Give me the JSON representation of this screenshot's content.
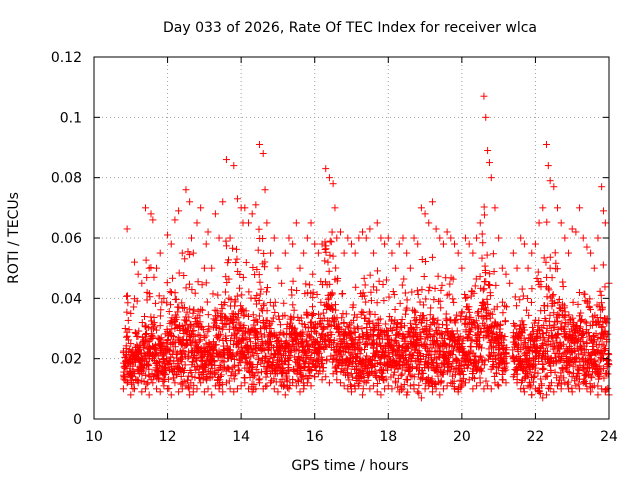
{
  "chart_data": {
    "type": "scatter",
    "title": "Day 033 of 2026, Rate Of TEC Index for receiver wlca",
    "xlabel": "GPS time / hours",
    "ylabel": "ROTI / TECUs",
    "xlim": [
      10,
      24
    ],
    "ylim": [
      0,
      0.12
    ],
    "x_ticks": [
      "10",
      "12",
      "14",
      "16",
      "18",
      "20",
      "22",
      "24"
    ],
    "y_ticks": [
      "0",
      "0.02",
      "0.04",
      "0.06",
      "0.08",
      "0.1",
      "0.12"
    ],
    "grid": true,
    "marker": "plus",
    "color": "#ff0000",
    "series": [
      {
        "x": [
          10.85,
          10.9,
          11.0,
          11.1,
          11.2,
          11.3,
          11.4,
          11.5,
          11.55,
          11.6,
          11.7,
          11.8,
          11.9,
          12.0,
          12.1,
          12.2,
          12.3,
          12.4,
          12.5,
          12.6,
          12.65,
          12.7,
          12.8,
          12.9,
          13.0,
          13.05,
          13.1,
          13.2,
          13.3,
          13.4,
          13.5,
          13.6,
          13.7,
          13.8,
          13.9,
          14.0,
          14.05,
          14.1,
          14.2,
          14.3,
          14.4,
          14.5,
          14.6,
          14.65,
          14.7,
          14.8,
          14.9,
          15.0,
          15.1,
          15.2,
          15.3,
          15.4,
          15.5,
          15.6,
          15.7,
          15.8,
          15.9,
          16.0,
          16.1,
          16.2,
          16.3,
          16.4,
          16.5,
          16.55,
          16.6,
          16.7,
          16.8,
          16.9,
          17.0,
          17.1,
          17.2,
          17.3,
          17.4,
          17.5,
          17.6,
          17.7,
          17.8,
          17.9,
          18.0,
          18.1,
          18.2,
          18.3,
          18.4,
          18.5,
          18.6,
          18.7,
          18.8,
          18.9,
          19.0,
          19.1,
          19.2,
          19.3,
          19.4,
          19.5,
          19.6,
          19.7,
          19.8,
          19.9,
          20.0,
          20.1,
          20.2,
          20.3,
          20.4,
          20.5,
          20.6,
          20.65,
          20.7,
          20.75,
          20.8,
          20.9,
          21.0,
          21.1,
          21.2,
          21.3,
          21.4,
          21.5,
          21.6,
          21.7,
          21.8,
          21.9,
          22.0,
          22.1,
          22.2,
          22.3,
          22.35,
          22.4,
          22.5,
          22.6,
          22.7,
          22.8,
          22.9,
          23.0,
          23.1,
          23.2,
          23.3,
          23.4,
          23.5,
          23.6,
          23.7,
          23.8,
          23.85,
          23.9,
          24.0
        ],
        "y": [
          0.03,
          0.063,
          0.035,
          0.052,
          0.048,
          0.045,
          0.07,
          0.05,
          0.068,
          0.066,
          0.05,
          0.055,
          0.04,
          0.061,
          0.058,
          0.066,
          0.069,
          0.055,
          0.076,
          0.072,
          0.06,
          0.055,
          0.065,
          0.07,
          0.05,
          0.058,
          0.062,
          0.05,
          0.068,
          0.06,
          0.072,
          0.086,
          0.06,
          0.084,
          0.073,
          0.07,
          0.065,
          0.07,
          0.065,
          0.068,
          0.071,
          0.091,
          0.088,
          0.076,
          0.065,
          0.055,
          0.06,
          0.05,
          0.045,
          0.055,
          0.06,
          0.058,
          0.065,
          0.05,
          0.055,
          0.06,
          0.065,
          0.058,
          0.055,
          0.058,
          0.083,
          0.08,
          0.078,
          0.07,
          0.06,
          0.062,
          0.055,
          0.06,
          0.058,
          0.055,
          0.06,
          0.062,
          0.06,
          0.063,
          0.055,
          0.065,
          0.06,
          0.058,
          0.06,
          0.055,
          0.05,
          0.058,
          0.06,
          0.055,
          0.05,
          0.06,
          0.058,
          0.07,
          0.068,
          0.065,
          0.072,
          0.063,
          0.06,
          0.058,
          0.062,
          0.06,
          0.058,
          0.055,
          0.05,
          0.06,
          0.058,
          0.055,
          0.06,
          0.065,
          0.107,
          0.1,
          0.089,
          0.085,
          0.08,
          0.07,
          0.06,
          0.05,
          0.048,
          0.045,
          0.055,
          0.05,
          0.06,
          0.058,
          0.05,
          0.055,
          0.058,
          0.065,
          0.07,
          0.091,
          0.084,
          0.079,
          0.077,
          0.07,
          0.065,
          0.06,
          0.055,
          0.063,
          0.062,
          0.07,
          0.06,
          0.057,
          0.055,
          0.05,
          0.06,
          0.077,
          0.069,
          0.065,
          0.045
        ]
      },
      {
        "x": [
          10.8,
          10.9,
          11.0,
          11.1,
          11.2,
          11.3,
          11.4,
          11.5,
          11.6,
          11.7,
          11.8,
          11.9,
          12.0,
          12.1,
          12.2,
          12.3,
          12.4,
          12.5,
          12.6,
          12.7,
          12.8,
          12.9,
          13.0,
          13.1,
          13.2,
          13.3,
          13.4,
          13.5,
          13.6,
          13.7,
          13.8,
          13.9,
          14.0,
          14.1,
          14.2,
          14.3,
          14.4,
          14.5,
          14.6,
          14.7,
          14.8,
          14.9,
          15.0,
          15.1,
          15.2,
          15.3,
          15.4,
          15.5,
          15.6,
          15.7,
          15.8,
          15.9,
          16.0,
          16.1,
          16.2,
          16.3,
          16.4,
          16.5,
          16.6,
          16.7,
          16.8,
          16.9,
          17.0,
          17.1,
          17.2,
          17.3,
          17.4,
          17.5,
          17.6,
          17.7,
          17.8,
          17.9,
          18.0,
          18.1,
          18.2,
          18.3,
          18.4,
          18.5,
          18.6,
          18.7,
          18.8,
          18.9,
          19.0,
          19.1,
          19.2,
          19.3,
          19.4,
          19.5,
          19.6,
          19.7,
          19.8,
          19.9,
          20.0,
          20.1,
          20.2,
          20.3,
          20.4,
          20.5,
          20.6,
          20.7,
          20.8,
          20.9,
          21.0,
          21.1,
          21.2,
          21.4,
          21.5,
          21.6,
          21.7,
          21.8,
          21.9,
          22.0,
          22.1,
          22.2,
          22.3,
          22.4,
          22.5,
          22.6,
          22.7,
          22.8,
          22.9,
          23.0,
          23.1,
          23.2,
          23.3,
          23.4,
          23.5,
          23.6,
          23.7,
          23.8,
          23.9,
          24.0
        ],
        "y": [
          0.01,
          0.012,
          0.008,
          0.01,
          0.012,
          0.009,
          0.01,
          0.008,
          0.012,
          0.01,
          0.009,
          0.011,
          0.01,
          0.008,
          0.012,
          0.009,
          0.01,
          0.011,
          0.008,
          0.009,
          0.01,
          0.012,
          0.009,
          0.01,
          0.008,
          0.011,
          0.01,
          0.009,
          0.012,
          0.01,
          0.009,
          0.01,
          0.011,
          0.012,
          0.01,
          0.009,
          0.01,
          0.012,
          0.01,
          0.011,
          0.012,
          0.01,
          0.009,
          0.011,
          0.008,
          0.01,
          0.012,
          0.011,
          0.009,
          0.01,
          0.012,
          0.011,
          0.014,
          0.015,
          0.013,
          0.014,
          0.012,
          0.015,
          0.013,
          0.012,
          0.011,
          0.01,
          0.009,
          0.01,
          0.011,
          0.008,
          0.012,
          0.01,
          0.011,
          0.009,
          0.008,
          0.01,
          0.011,
          0.01,
          0.012,
          0.009,
          0.01,
          0.008,
          0.011,
          0.01,
          0.009,
          0.007,
          0.01,
          0.011,
          0.009,
          0.01,
          0.008,
          0.01,
          0.011,
          0.012,
          0.01,
          0.009,
          0.011,
          0.012,
          0.013,
          0.01,
          0.011,
          0.012,
          0.01,
          0.011,
          0.01,
          0.012,
          0.011,
          0.013,
          0.012,
          0.014,
          0.012,
          0.01,
          0.009,
          0.011,
          0.008,
          0.01,
          0.009,
          0.007,
          0.008,
          0.01,
          0.009,
          0.011,
          0.01,
          0.012,
          0.01,
          0.009,
          0.011,
          0.01,
          0.012,
          0.01,
          0.009,
          0.011,
          0.008,
          0.01,
          0.009,
          0.008
        ]
      },
      {
        "x": [
          10.8,
          11.0,
          11.2,
          11.4,
          11.6,
          11.8,
          12.0,
          12.2,
          12.4,
          12.6,
          12.8,
          13.0,
          13.2,
          13.4,
          13.6,
          13.8,
          14.0,
          14.2,
          14.4,
          14.6,
          14.8,
          15.0,
          15.2,
          15.4,
          15.6,
          15.8,
          16.0,
          16.2,
          16.4,
          16.6,
          16.8,
          17.0,
          17.2,
          17.4,
          17.6,
          17.8,
          18.0,
          18.2,
          18.4,
          18.6,
          18.8,
          19.0,
          19.2,
          19.4,
          19.6,
          19.8,
          20.0,
          20.2,
          20.4,
          20.6,
          20.8,
          21.0,
          21.2,
          21.4,
          21.6,
          21.8,
          22.0,
          22.2,
          22.4,
          22.6,
          22.8,
          23.0,
          23.2,
          23.4,
          23.6,
          23.8,
          24.0
        ],
        "y": [
          0.022,
          0.025,
          0.02,
          0.028,
          0.024,
          0.022,
          0.026,
          0.03,
          0.025,
          0.028,
          0.022,
          0.027,
          0.024,
          0.03,
          0.026,
          0.032,
          0.03,
          0.034,
          0.029,
          0.032,
          0.028,
          0.026,
          0.025,
          0.03,
          0.028,
          0.024,
          0.03,
          0.028,
          0.026,
          0.03,
          0.028,
          0.025,
          0.027,
          0.025,
          0.028,
          0.024,
          0.022,
          0.026,
          0.024,
          0.025,
          0.022,
          0.024,
          0.026,
          0.028,
          0.03,
          0.027,
          0.025,
          0.028,
          0.024,
          0.03,
          0.026,
          0.025,
          0.022,
          0.02,
          0.018,
          0.024,
          0.022,
          0.025,
          0.02,
          0.028,
          0.022,
          0.026,
          0.03,
          0.025,
          0.022,
          0.02,
          0.018
        ]
      }
    ]
  }
}
